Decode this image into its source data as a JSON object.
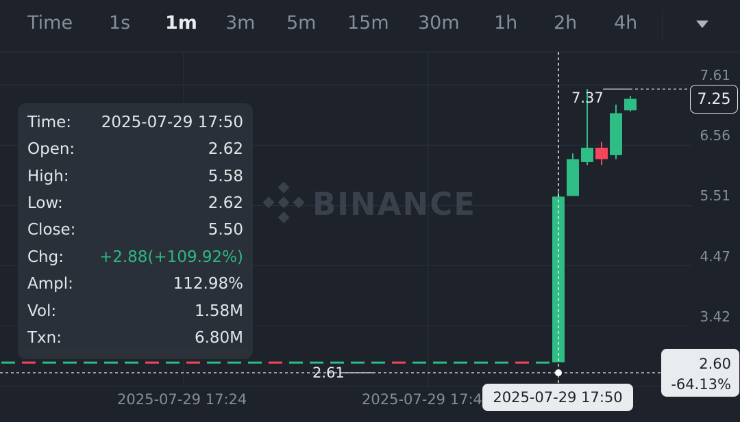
{
  "intervals": {
    "items": [
      "Time",
      "1s",
      "1m",
      "3m",
      "5m",
      "15m",
      "30m",
      "1h",
      "2h",
      "4h"
    ],
    "active_index": 2
  },
  "watermark": "BINANCE",
  "tooltip": {
    "rows": [
      {
        "key": "Time:",
        "value": "2025-07-29 17:50"
      },
      {
        "key": "Open:",
        "value": "2.62"
      },
      {
        "key": "High:",
        "value": "5.58"
      },
      {
        "key": "Low:",
        "value": "2.62"
      },
      {
        "key": "Close:",
        "value": "5.50"
      },
      {
        "key": "Chg:",
        "value": "+2.88(+109.92%)"
      },
      {
        "key": "Ampl:",
        "value": "112.98%"
      },
      {
        "key": "Vol:",
        "value": "1.58M"
      },
      {
        "key": "Txn:",
        "value": "6.80M"
      }
    ]
  },
  "crosshair": {
    "price": "2.60",
    "change": "-64.13%",
    "time": "2025-07-29 17:50"
  },
  "current_price": "7.25",
  "colors": {
    "up": "#2ebd85",
    "down": "#f6465d",
    "background": "#1e222a",
    "grid": "#2b3139"
  },
  "chart_data": {
    "type": "candlestick",
    "y_ticks": [
      "7.61",
      "6.56",
      "5.51",
      "4.47",
      "3.42"
    ],
    "x_ticks": [
      "2025-07-29 17:24",
      "2025-07-29 17:4"
    ],
    "high_annotation": "7.37",
    "low_annotation": "2.61",
    "ylim": [
      2.4,
      7.9
    ],
    "candles": [
      {
        "o": 2.62,
        "h": 5.58,
        "l": 2.62,
        "c": 5.5
      },
      {
        "o": 5.51,
        "h": 6.25,
        "l": 5.51,
        "c": 6.15
      },
      {
        "o": 6.1,
        "h": 7.37,
        "l": 6.05,
        "c": 6.35
      },
      {
        "o": 6.35,
        "h": 6.45,
        "l": 6.05,
        "c": 6.15
      },
      {
        "o": 6.22,
        "h": 7.1,
        "l": 6.15,
        "c": 6.95
      },
      {
        "o": 7.0,
        "h": 7.25,
        "l": 6.98,
        "c": 7.2
      }
    ],
    "flat_candles": 27,
    "flat_price": 2.62
  }
}
